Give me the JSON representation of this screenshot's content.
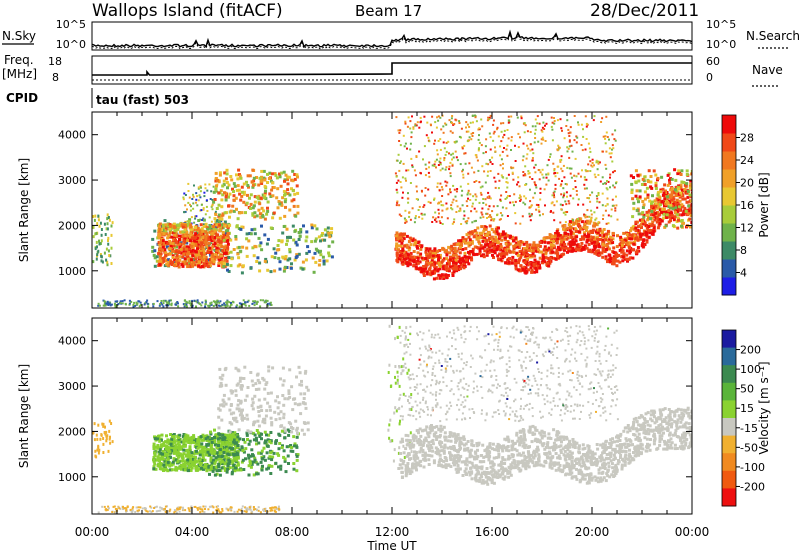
{
  "header": {
    "station": "Wallops Island (fitACF)",
    "beam": "Beam 17",
    "date": "28/Dec/2011"
  },
  "noise_panel": {
    "left_label": "N.Sky",
    "right_label": "N.Search",
    "left_ticks": [
      "10^5",
      "10^0"
    ],
    "right_ticks": [
      "10^5",
      "10^0"
    ]
  },
  "freq_panel": {
    "left_label_line1": "Freq.",
    "left_label_line2": "[MHz]",
    "right_label": "Nave",
    "left_ticks": [
      "18",
      "8"
    ],
    "right_ticks": [
      "60",
      "0"
    ]
  },
  "cpid_panel": {
    "label": "CPID",
    "value": "tau (fast) 503"
  },
  "chart_data": [
    {
      "type": "heatmap",
      "title": "",
      "ylabel": "Slant Range [km]",
      "xlabel": "",
      "ylim": [
        180,
        4500
      ],
      "yticks": [
        "1000",
        "2000",
        "3000",
        "4000"
      ],
      "xticks": [
        "00:00",
        "04:00",
        "08:00",
        "12:00",
        "16:00",
        "20:00",
        "00:00"
      ],
      "colorbar": {
        "label": "Power [dB]",
        "ticks": [
          "4",
          "8",
          "12",
          "16",
          "20",
          "24",
          "28"
        ],
        "colors": [
          "#1e1ee6",
          "#2a5aa8",
          "#3d8a66",
          "#6fb24a",
          "#a8cc3a",
          "#e8c832",
          "#f0a028",
          "#f07820",
          "#f04818",
          "#ee0a0a"
        ]
      },
      "regions": [
        {
          "t_start": 2.2,
          "t_end": 5.3,
          "r_low": 1000,
          "r_high": 2000,
          "level": "high"
        },
        {
          "t_start": 4.7,
          "t_end": 8.2,
          "r_low": 2100,
          "r_high": 3200,
          "level": "medium"
        },
        {
          "t_start": 12.0,
          "t_end": 24.0,
          "r_low": 700,
          "r_high": 2200,
          "level": "high"
        },
        {
          "t_start": 12.0,
          "t_end": 21.0,
          "r_low": 2200,
          "r_high": 4400,
          "level": "medium"
        }
      ]
    },
    {
      "type": "heatmap",
      "title": "",
      "ylabel": "Slant Range [km]",
      "xlabel": "Time UT",
      "ylim": [
        180,
        4500
      ],
      "yticks": [
        "1000",
        "2000",
        "3000",
        "4000"
      ],
      "xticks": [
        "00:00",
        "04:00",
        "08:00",
        "12:00",
        "16:00",
        "20:00",
        "00:00"
      ],
      "colorbar": {
        "label": "Velocity [m s⁻¹]",
        "ticks": [
          "200",
          "100",
          "50",
          "15",
          "-15",
          "-50",
          "-100",
          "-200"
        ],
        "colors": [
          "#1a1aa0",
          "#2a6a9a",
          "#3c8a50",
          "#5ab43a",
          "#8ad230",
          "#c8c8c0",
          "#f0b030",
          "#f08a20",
          "#f05a10",
          "#ee1010"
        ]
      },
      "regions": [
        {
          "t_start": 2.2,
          "t_end": 6.0,
          "r_low": 1100,
          "r_high": 1900,
          "velocity": "50 to 100"
        },
        {
          "t_start": 12.0,
          "t_end": 24.0,
          "r_low": 800,
          "r_high": 2300,
          "velocity": "-15 to 15"
        }
      ]
    }
  ]
}
